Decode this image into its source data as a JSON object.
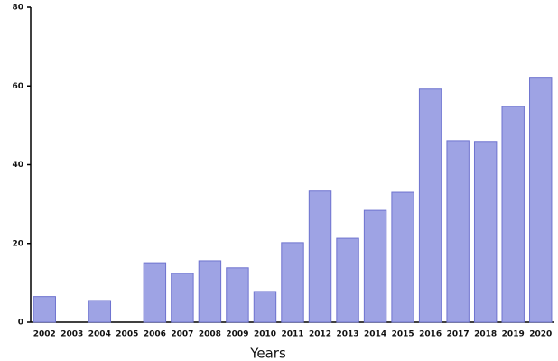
{
  "chart_data": {
    "type": "bar",
    "x_label": "Years",
    "categories": [
      "2002",
      "2003",
      "2004",
      "2005",
      "2006",
      "2007",
      "2008",
      "2009",
      "2010",
      "2011",
      "2012",
      "2013",
      "2014",
      "2015",
      "2016",
      "2017",
      "2018",
      "2019",
      "2020"
    ],
    "values": [
      6.5,
      0,
      5.5,
      0,
      15.1,
      12.4,
      15.6,
      13.8,
      7.8,
      20.2,
      33.3,
      21.3,
      28.4,
      33,
      59.2,
      46.1,
      45.9,
      54.8,
      62.2
    ],
    "color": "#9ea3e4",
    "ylim": [
      0,
      80
    ],
    "yticks": [
      0,
      20,
      40,
      60,
      80
    ]
  }
}
